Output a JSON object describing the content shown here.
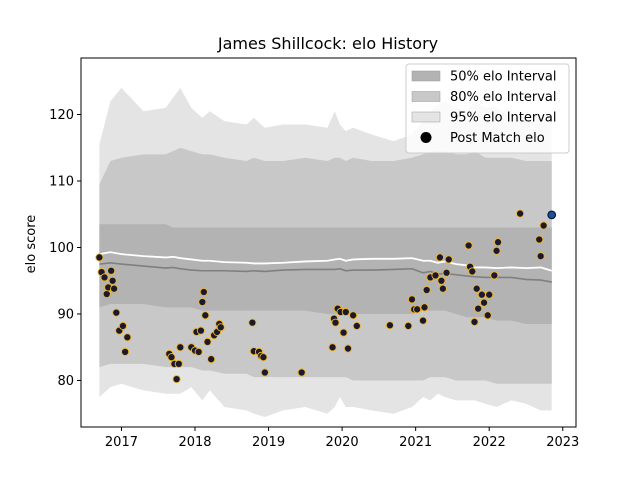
{
  "chart_data": {
    "type": "line",
    "title": "James Shillcock: elo History",
    "xlabel": "",
    "ylabel": "elo score",
    "xlim": [
      2016.45,
      2023.18
    ],
    "ylim": [
      73,
      128.5
    ],
    "x_ticks": [
      2017,
      2018,
      2019,
      2020,
      2021,
      2022,
      2023
    ],
    "y_ticks": [
      80,
      90,
      100,
      110,
      120
    ],
    "grid": false,
    "legend_position": "top-right",
    "legend": [
      {
        "label": "50% elo Interval",
        "kind": "patch",
        "color": "#b3b3b3"
      },
      {
        "label": "80% elo Interval",
        "kind": "patch",
        "color": "#c8c8c8"
      },
      {
        "label": "95% elo Interval",
        "kind": "patch",
        "color": "#e4e4e4"
      },
      {
        "label": "Post Match elo",
        "kind": "marker",
        "color": "#000000"
      }
    ],
    "colors": {
      "band50": "#b3b3b3",
      "band80": "#c8c8c8",
      "band95": "#e4e4e4",
      "median_line": "#7f7f7f",
      "mean_line": "#ffffff",
      "marker_fill": "#1a1a2e",
      "marker_edge": "#f0b429",
      "latest_fill": "#1f4e9a",
      "latest_edge": "#0a1a3a"
    },
    "x": [
      2016.7,
      2016.85,
      2017.0,
      2017.3,
      2017.6,
      2017.7,
      2017.8,
      2017.95,
      2018.1,
      2018.2,
      2018.4,
      2018.7,
      2018.8,
      2018.95,
      2019.2,
      2019.5,
      2019.8,
      2019.9,
      2019.97,
      2020.05,
      2020.15,
      2020.4,
      2020.7,
      2020.95,
      2021.1,
      2021.2,
      2021.3,
      2021.4,
      2021.55,
      2021.7,
      2021.8,
      2021.95,
      2022.1,
      2022.3,
      2022.5,
      2022.7,
      2022.85
    ],
    "bands": {
      "95": {
        "upper": [
          115.5,
          122.0,
          124.0,
          120.5,
          121.0,
          122.5,
          124.0,
          121.0,
          119.5,
          120.5,
          119.0,
          118.5,
          119.5,
          118.0,
          118.5,
          118.5,
          118.0,
          120.5,
          118.5,
          117.5,
          118.0,
          117.0,
          116.0,
          117.0,
          119.0,
          120.5,
          121.5,
          122.0,
          121.0,
          120.5,
          122.0,
          121.0,
          121.0,
          119.5,
          120.0,
          120.0,
          119.5
        ],
        "lower": [
          77.5,
          79.0,
          79.5,
          78.5,
          78.0,
          78.0,
          78.0,
          79.0,
          77.0,
          78.5,
          76.0,
          75.5,
          75.0,
          74.5,
          75.5,
          76.0,
          75.0,
          76.0,
          77.5,
          76.0,
          76.0,
          75.5,
          75.0,
          76.0,
          77.5,
          77.0,
          78.0,
          77.5,
          77.0,
          77.0,
          77.0,
          76.5,
          76.0,
          77.0,
          76.5,
          75.5,
          75.5
        ]
      },
      "80": {
        "upper": [
          109.5,
          113.0,
          113.5,
          114.0,
          114.0,
          114.5,
          115.0,
          114.5,
          114.0,
          114.0,
          113.5,
          113.0,
          113.5,
          113.0,
          113.0,
          113.5,
          113.0,
          113.5,
          113.5,
          113.0,
          113.5,
          113.0,
          113.0,
          113.5,
          114.0,
          114.5,
          114.5,
          114.5,
          114.0,
          114.0,
          114.5,
          113.5,
          113.5,
          113.5,
          113.0,
          113.0,
          113.0
        ],
        "lower": [
          82.0,
          82.5,
          82.5,
          82.5,
          82.0,
          82.0,
          82.0,
          82.0,
          81.5,
          81.5,
          81.0,
          81.0,
          80.5,
          80.5,
          80.5,
          80.5,
          80.5,
          80.5,
          80.5,
          80.5,
          80.0,
          80.0,
          80.0,
          80.0,
          80.0,
          80.5,
          80.5,
          80.5,
          80.0,
          80.0,
          80.0,
          80.0,
          79.5,
          79.5,
          79.5,
          79.5,
          79.5
        ]
      },
      "50": {
        "upper": [
          103.5,
          103.5,
          103.5,
          103.5,
          103.5,
          103.0,
          103.0,
          103.0,
          103.0,
          103.0,
          103.0,
          103.0,
          103.0,
          103.0,
          103.0,
          103.0,
          103.0,
          103.0,
          103.0,
          103.0,
          103.0,
          103.0,
          103.0,
          103.0,
          103.0,
          103.0,
          103.0,
          103.0,
          103.0,
          103.0,
          103.0,
          103.0,
          103.0,
          103.0,
          103.0,
          103.0,
          103.0
        ],
        "lower": [
          91.0,
          91.5,
          91.5,
          91.5,
          91.0,
          91.0,
          91.0,
          91.0,
          90.5,
          90.5,
          90.5,
          90.5,
          90.5,
          90.5,
          90.5,
          90.5,
          90.0,
          90.0,
          90.0,
          90.0,
          90.0,
          90.0,
          90.0,
          90.0,
          90.5,
          90.5,
          90.5,
          90.5,
          90.0,
          89.5,
          89.5,
          89.5,
          89.0,
          89.0,
          88.5,
          88.5,
          88.5
        ]
      }
    },
    "mean_line": [
      99.0,
      99.3,
      99.0,
      98.7,
      98.5,
      98.6,
      98.4,
      98.2,
      98.0,
      98.0,
      97.8,
      97.7,
      97.6,
      97.6,
      97.7,
      97.9,
      98.0,
      98.2,
      98.3,
      98.0,
      98.2,
      98.3,
      98.3,
      98.4,
      98.0,
      98.0,
      97.7,
      97.9,
      97.5,
      97.3,
      97.0,
      97.0,
      96.9,
      97.0,
      96.9,
      97.0,
      96.5
    ],
    "median_line": [
      97.5,
      97.7,
      97.5,
      97.2,
      96.9,
      97.0,
      96.8,
      96.6,
      96.5,
      96.5,
      96.5,
      96.4,
      96.5,
      96.4,
      96.6,
      96.7,
      96.7,
      96.7,
      96.8,
      96.5,
      96.6,
      96.6,
      96.7,
      96.8,
      96.2,
      96.4,
      96.0,
      96.1,
      95.9,
      95.7,
      95.6,
      95.5,
      95.5,
      95.5,
      95.2,
      95.1,
      94.8
    ],
    "post_match_elo": [
      [
        2016.7,
        98.5
      ],
      [
        2016.73,
        96.3
      ],
      [
        2016.77,
        95.5
      ],
      [
        2016.8,
        93.0
      ],
      [
        2016.82,
        94.0
      ],
      [
        2016.86,
        96.5
      ],
      [
        2016.88,
        95.0
      ],
      [
        2016.9,
        93.8
      ],
      [
        2016.93,
        90.2
      ],
      [
        2016.97,
        87.5
      ],
      [
        2017.02,
        88.2
      ],
      [
        2017.05,
        84.3
      ],
      [
        2017.08,
        86.5
      ],
      [
        2017.65,
        84.0
      ],
      [
        2017.68,
        83.5
      ],
      [
        2017.72,
        82.5
      ],
      [
        2017.75,
        80.2
      ],
      [
        2017.78,
        82.5
      ],
      [
        2017.8,
        85.0
      ],
      [
        2017.95,
        85.0
      ],
      [
        2018.0,
        84.5
      ],
      [
        2018.02,
        87.3
      ],
      [
        2018.05,
        84.3
      ],
      [
        2018.08,
        87.5
      ],
      [
        2018.1,
        91.8
      ],
      [
        2018.12,
        93.3
      ],
      [
        2018.14,
        89.8
      ],
      [
        2018.17,
        85.8
      ],
      [
        2018.22,
        83.2
      ],
      [
        2018.26,
        86.8
      ],
      [
        2018.3,
        87.3
      ],
      [
        2018.33,
        88.5
      ],
      [
        2018.35,
        88.0
      ],
      [
        2018.78,
        88.7
      ],
      [
        2018.8,
        84.4
      ],
      [
        2018.87,
        84.3
      ],
      [
        2018.9,
        83.7
      ],
      [
        2018.93,
        83.5
      ],
      [
        2018.95,
        81.2
      ],
      [
        2019.45,
        81.2
      ],
      [
        2019.87,
        85.0
      ],
      [
        2019.89,
        89.3
      ],
      [
        2019.91,
        88.7
      ],
      [
        2019.94,
        90.8
      ],
      [
        2019.98,
        90.3
      ],
      [
        2020.02,
        87.2
      ],
      [
        2020.05,
        90.3
      ],
      [
        2020.08,
        84.8
      ],
      [
        2020.15,
        89.8
      ],
      [
        2020.2,
        88.2
      ],
      [
        2020.65,
        88.3
      ],
      [
        2020.9,
        88.2
      ],
      [
        2020.95,
        92.2
      ],
      [
        2020.98,
        90.7
      ],
      [
        2021.02,
        90.7
      ],
      [
        2021.1,
        89.0
      ],
      [
        2021.12,
        91.0
      ],
      [
        2021.15,
        93.6
      ],
      [
        2021.2,
        95.5
      ],
      [
        2021.27,
        95.8
      ],
      [
        2021.33,
        98.5
      ],
      [
        2021.35,
        95.0
      ],
      [
        2021.37,
        93.8
      ],
      [
        2021.42,
        96.2
      ],
      [
        2021.45,
        98.2
      ],
      [
        2021.72,
        100.3
      ],
      [
        2021.74,
        97.1
      ],
      [
        2021.77,
        96.4
      ],
      [
        2021.8,
        88.8
      ],
      [
        2021.83,
        93.8
      ],
      [
        2021.85,
        90.8
      ],
      [
        2021.9,
        92.9
      ],
      [
        2021.93,
        91.7
      ],
      [
        2021.98,
        89.8
      ],
      [
        2022.0,
        92.9
      ],
      [
        2022.07,
        95.8
      ],
      [
        2022.12,
        100.8
      ],
      [
        2022.1,
        99.5
      ],
      [
        2022.42,
        105.1
      ],
      [
        2022.68,
        101.2
      ],
      [
        2022.7,
        98.7
      ],
      [
        2022.74,
        103.3
      ]
    ],
    "latest_point": [
      2022.85,
      104.9
    ]
  }
}
